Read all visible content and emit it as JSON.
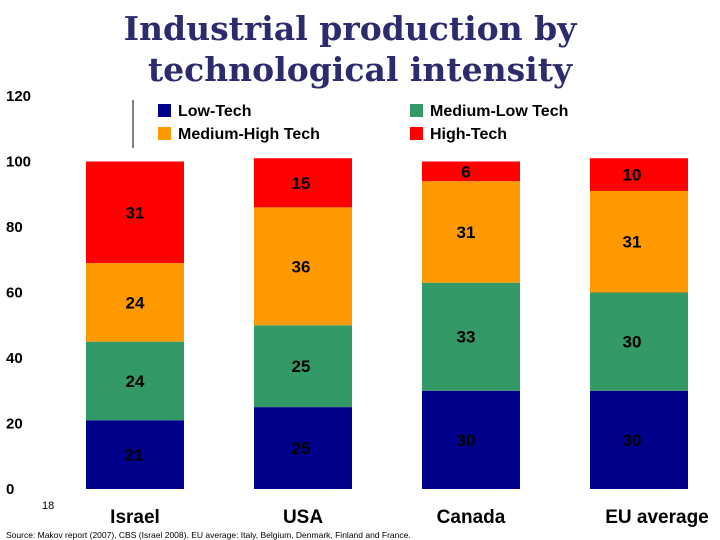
{
  "slide_number": "18",
  "source_note": "Source: Makov report (2007), CBS (Israel 2008). EU average: Italy, Belgium, Denmark, Finland and France.",
  "chart_data": {
    "type": "bar",
    "stacked": true,
    "title": [
      "Industrial production by",
      "technological intensity"
    ],
    "xlabel": "",
    "ylabel": "",
    "ylim": [
      0,
      120
    ],
    "yticks": [
      "0",
      "20",
      "40",
      "60",
      "80",
      "100",
      "120"
    ],
    "categories": [
      "Israel",
      "USA",
      "Canada",
      "EU average"
    ],
    "series": [
      {
        "name": "Low-Tech",
        "color": "#00008b",
        "values": [
          21,
          25,
          30,
          30
        ],
        "labels": [
          "21",
          "25",
          "30",
          "30"
        ]
      },
      {
        "name": "Medium-Low Tech",
        "color": "#339966",
        "values": [
          24,
          25,
          33,
          30
        ],
        "labels": [
          "24",
          "25",
          "33",
          "30"
        ]
      },
      {
        "name": "Medium-High Tech",
        "color": "#ff9900",
        "values": [
          24,
          36,
          31,
          31
        ],
        "labels": [
          "24",
          "36",
          "31",
          "31"
        ]
      },
      {
        "name": "High-Tech",
        "color": "#ff0000",
        "values": [
          31,
          15,
          6,
          10
        ],
        "labels": [
          "31",
          "15",
          "6",
          "10"
        ]
      }
    ],
    "legend_placement": "top"
  }
}
